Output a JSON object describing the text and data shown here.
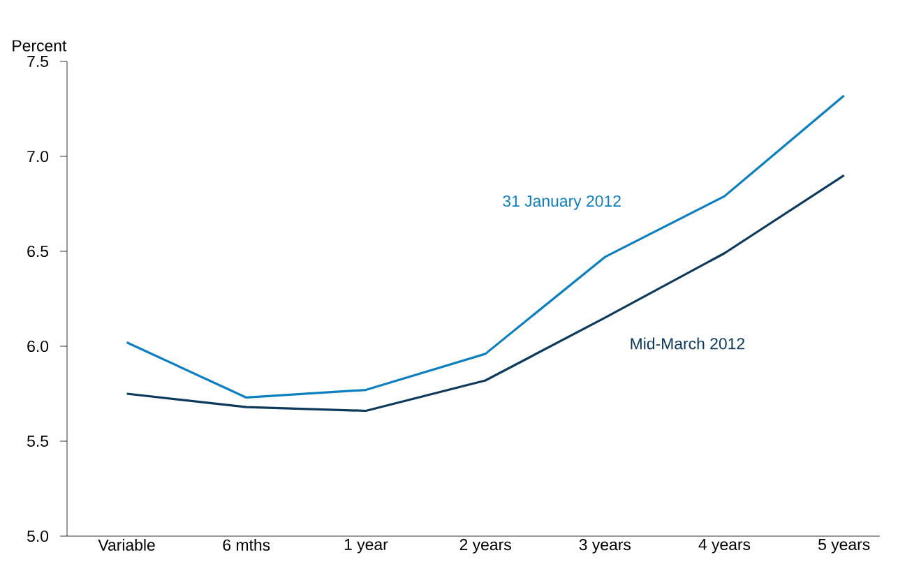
{
  "chart_data": {
    "type": "line",
    "ylabel": "Percent",
    "categories": [
      "Variable",
      "6 mths",
      "1 year",
      "2 years",
      "3 years",
      "4 years",
      "5 years"
    ],
    "series": [
      {
        "name": "31 January 2012",
        "color": "#0b7fc0",
        "values": [
          6.02,
          5.73,
          5.77,
          5.96,
          6.47,
          6.79,
          7.32
        ]
      },
      {
        "name": "Mid-March 2012",
        "color": "#0d3a5c",
        "values": [
          5.75,
          5.68,
          5.66,
          5.82,
          6.15,
          6.49,
          6.9
        ]
      }
    ],
    "ylim": [
      5.0,
      7.5
    ],
    "yticks": [
      {
        "value": 5,
        "label": "5.0"
      },
      5.5,
      {
        "value": 6,
        "label": "6.0"
      },
      6.5,
      {
        "value": 7,
        "label": "7.0"
      },
      7.5
    ],
    "grid": false,
    "legend": false,
    "marker": "none",
    "line_style": "solid"
  }
}
